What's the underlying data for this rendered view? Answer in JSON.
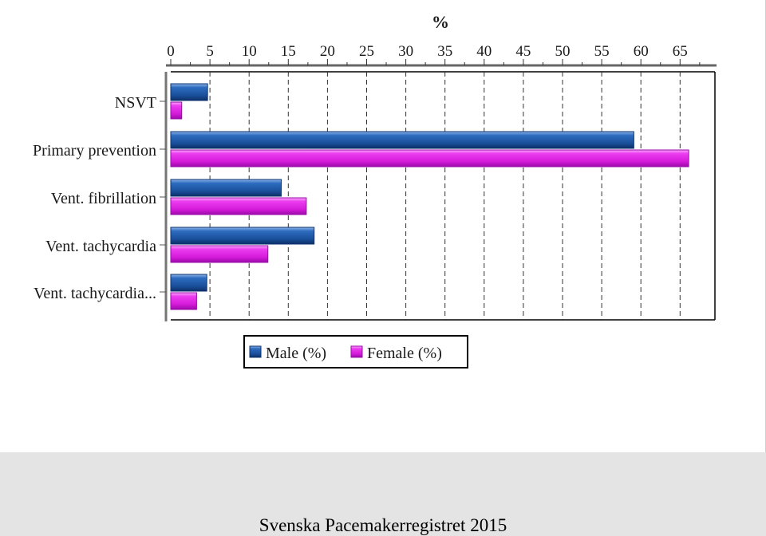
{
  "colors": {
    "male": "#1f5aa6",
    "male_dark": "#0d3370",
    "female": "#e21fe8",
    "female_dark": "#9a0aa8",
    "grid": "#333333",
    "background": "#ffffff",
    "footer_background": "#e4e4e4"
  },
  "footer": {
    "caption": "Svenska Pacemakerregistret 2015"
  },
  "chart_data": {
    "type": "bar",
    "orientation": "horizontal",
    "title": "",
    "axis_title": "%",
    "x_axis_position": "top",
    "xlim": [
      0,
      71
    ],
    "xticks": [
      0,
      5,
      10,
      15,
      20,
      25,
      30,
      35,
      40,
      45,
      50,
      55,
      60,
      65
    ],
    "grid": "vertical dashed",
    "legend_position": "bottom",
    "categories": [
      "NSVT",
      "Primary prevention",
      "Vent. fibrillation",
      "Vent. tachycardia",
      "Vent. tachycardia..."
    ],
    "series": [
      {
        "name": "Male (%)",
        "values": [
          4.7,
          59.1,
          14.1,
          18.3,
          4.6
        ]
      },
      {
        "name": "Female (%)",
        "values": [
          1.4,
          66.1,
          17.3,
          12.4,
          3.3
        ]
      }
    ]
  }
}
